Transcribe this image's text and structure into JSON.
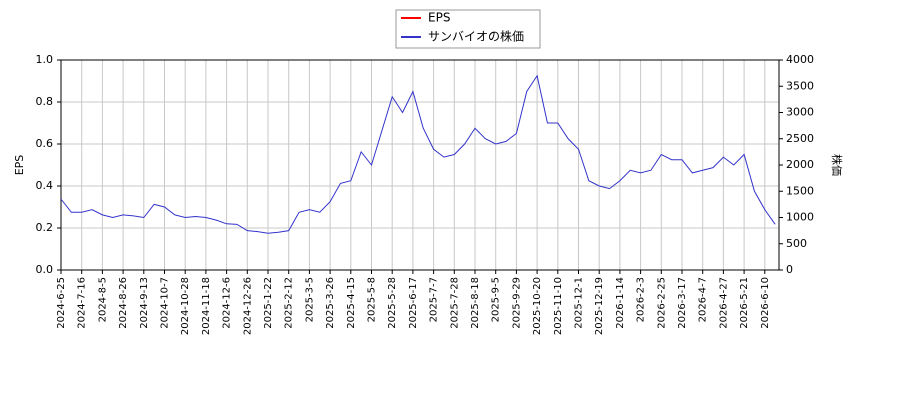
{
  "chart_data": {
    "type": "line",
    "categories": [
      "2024-6-25",
      null,
      "2024-7-16",
      null,
      "2024-8-5",
      null,
      "2024-8-26",
      null,
      "2024-9-13",
      null,
      "2024-10-7",
      null,
      "2024-10-28",
      null,
      "2024-11-18",
      null,
      "2024-12-6",
      null,
      "2024-12-26",
      null,
      "2025-1-22",
      null,
      "2025-2-12",
      null,
      "2025-3-5",
      null,
      "2025-3-26",
      null,
      "2025-4-15",
      null,
      "2025-5-8",
      null,
      "2025-5-28",
      null,
      "2025-6-17",
      null,
      "2025-7-7",
      null,
      "2025-7-28",
      null,
      "2025-8-18",
      null,
      "2025-9-5",
      null,
      "2025-9-29",
      null,
      "2025-10-20",
      null,
      "2025-11-10",
      null,
      "2025-12-1",
      null,
      "2025-12-19",
      null,
      "2026-1-14",
      null,
      "2026-2-3",
      null,
      "2026-2-25",
      null,
      "2026-3-17",
      null,
      "2026-4-7",
      null,
      "2026-4-27",
      null,
      "2026-5-21",
      null,
      "2026-6-10",
      null
    ],
    "series": [
      {
        "name": "EPS",
        "color": "#ff0000",
        "axis": "y",
        "values": [
          null,
          null,
          null,
          null,
          null,
          null,
          null,
          null,
          null,
          null,
          null,
          null,
          null,
          null,
          null,
          null,
          null,
          null,
          null,
          null,
          null,
          null,
          null,
          null,
          null,
          null,
          null,
          null,
          null,
          null,
          null,
          null,
          null,
          null,
          null,
          null,
          null,
          null,
          null,
          null,
          null,
          null,
          null,
          null,
          null,
          null,
          null,
          null,
          null,
          null,
          null,
          null,
          null,
          null,
          null,
          null,
          null,
          null,
          null,
          null,
          null,
          null,
          null,
          null,
          null,
          null,
          null,
          null,
          null,
          null
        ]
      },
      {
        "name": "サンバイオの株価",
        "color": "#3333cc",
        "axis": "y2",
        "values": [
          1350,
          1100,
          1100,
          1150,
          1050,
          1000,
          1050,
          1030,
          1000,
          1250,
          1200,
          1050,
          1000,
          1020,
          1000,
          950,
          880,
          870,
          750,
          730,
          700,
          720,
          750,
          1100,
          1150,
          1100,
          1300,
          1650,
          1700,
          2250,
          2000,
          2650,
          3300,
          3000,
          3400,
          2700,
          2300,
          2150,
          2200,
          2400,
          2700,
          2500,
          2400,
          2450,
          2600,
          3400,
          3700,
          2800,
          2800,
          2500,
          2300,
          1700,
          1600,
          1550,
          1700,
          1900,
          1850,
          1900,
          2200,
          2100,
          2100,
          1850,
          1900,
          1950,
          2150,
          2000,
          2200,
          1500,
          1150,
          870
        ]
      }
    ],
    "ylabel": "EPS",
    "y2label": "株価",
    "ylim": [
      0,
      1
    ],
    "yticks": [
      {
        "value": 0,
        "label": "0.0"
      },
      0.2,
      0.4,
      0.6,
      0.8,
      {
        "value": 1,
        "label": "1.0"
      }
    ],
    "y2lim": [
      0,
      4000
    ],
    "y2ticks": [
      0,
      500,
      1000,
      1500,
      2000,
      2500,
      3000,
      3500,
      4000
    ],
    "grid": true,
    "legend": "top"
  }
}
